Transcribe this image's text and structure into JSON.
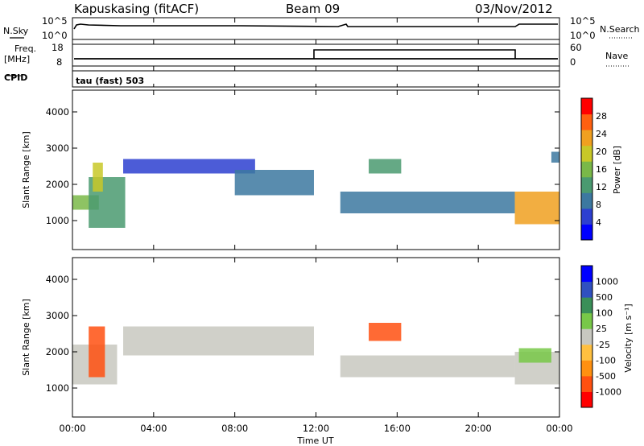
{
  "header": {
    "title": "Kapuskasing (fitACF)",
    "beam": "Beam 09",
    "date": "03/Nov/2012"
  },
  "strip_labels": {
    "nsky": "N.Sky",
    "nsearch": "N.Search",
    "freq": "Freq.",
    "freq_unit": "[MHz]",
    "nave": "Nave",
    "cpid": "CPID",
    "cpid_value": "tau (fast) 503",
    "noise_ticks_left": [
      "10^5",
      "10^0"
    ],
    "noise_ticks_right": [
      "10^5",
      "10^0"
    ],
    "freq_ticks_left": [
      "18",
      "8"
    ],
    "nave_ticks_right": [
      "60",
      "0"
    ]
  },
  "chart_data": [
    {
      "type": "heatmap",
      "name": "power",
      "ylabel": "Slant Range [km]",
      "ytick_labels": [
        "1000",
        "2000",
        "3000",
        "4000"
      ],
      "ylim": [
        200,
        4600
      ],
      "xlim": [
        0,
        24
      ],
      "colorbar": {
        "label": "Power [dB]",
        "tick_labels": [
          "4",
          "8",
          "12",
          "16",
          "20",
          "24",
          "28"
        ],
        "range": [
          0,
          30
        ],
        "colors": [
          "#0000ff",
          "#2d3fd0",
          "#3c78a0",
          "#4a9a70",
          "#7ab848",
          "#c8c828",
          "#f0a020",
          "#ff6010",
          "#ff0000"
        ]
      },
      "echo_regions": [
        {
          "x": [
            0.0,
            1.3
          ],
          "range": [
            1300,
            1700
          ],
          "db": 14
        },
        {
          "x": [
            0.8,
            2.6
          ],
          "range": [
            800,
            2200
          ],
          "db": 10
        },
        {
          "x": [
            1.0,
            1.5
          ],
          "range": [
            1800,
            2600
          ],
          "db": 20
        },
        {
          "x": [
            2.5,
            9.0
          ],
          "range": [
            2300,
            2700
          ],
          "db": 5
        },
        {
          "x": [
            8.0,
            11.9
          ],
          "range": [
            1700,
            2400
          ],
          "db": 8
        },
        {
          "x": [
            13.2,
            21.8
          ],
          "range": [
            1200,
            1800
          ],
          "db": 9
        },
        {
          "x": [
            14.6,
            16.2
          ],
          "range": [
            2300,
            2700
          ],
          "db": 11
        },
        {
          "x": [
            21.8,
            24.0
          ],
          "range": [
            900,
            1800
          ],
          "db": 22
        },
        {
          "x": [
            23.6,
            24.0
          ],
          "range": [
            2600,
            2900
          ],
          "db": 8
        }
      ]
    },
    {
      "type": "heatmap",
      "name": "velocity",
      "ylabel": "Slant Range [km]",
      "xlabel": "Time UT",
      "ytick_labels": [
        "1000",
        "2000",
        "3000",
        "4000"
      ],
      "xtick_labels": [
        "00:00",
        "04:00",
        "08:00",
        "12:00",
        "16:00",
        "20:00",
        "00:00"
      ],
      "ylim": [
        200,
        4600
      ],
      "xlim": [
        0,
        24
      ],
      "ground_scatter_color": "#c8c8c0",
      "colorbar": {
        "label": "Velocity [m s⁻¹]",
        "tick_labels": [
          "-1000",
          "-500",
          "-100",
          "-25",
          "25",
          "100",
          "500",
          "1000"
        ],
        "colors": [
          "#ff0000",
          "#ff5010",
          "#ff9010",
          "#ffc040",
          "#c8c8c0",
          "#78c848",
          "#3a8f58",
          "#3050c0",
          "#0000ff"
        ]
      },
      "echo_regions": [
        {
          "x": [
            0.0,
            2.2
          ],
          "range": [
            1100,
            2200
          ],
          "class": "ground"
        },
        {
          "x": [
            0.8,
            1.6
          ],
          "range": [
            1300,
            2700
          ],
          "class": "-500"
        },
        {
          "x": [
            2.5,
            11.9
          ],
          "range": [
            1900,
            2700
          ],
          "class": "ground"
        },
        {
          "x": [
            13.2,
            21.8
          ],
          "range": [
            1300,
            1900
          ],
          "class": "ground"
        },
        {
          "x": [
            14.6,
            16.2
          ],
          "range": [
            2300,
            2800
          ],
          "class": "-500"
        },
        {
          "x": [
            21.8,
            24.0
          ],
          "range": [
            1100,
            2000
          ],
          "class": "ground"
        },
        {
          "x": [
            22.0,
            23.6
          ],
          "range": [
            1700,
            2100
          ],
          "class": "100"
        }
      ]
    }
  ]
}
